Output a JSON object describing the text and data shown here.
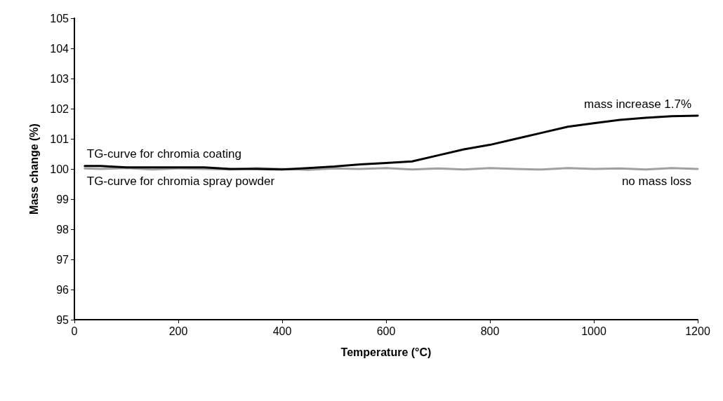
{
  "chart_data": {
    "type": "line",
    "xlabel": "Temperature (°C)",
    "ylabel": "Mass change (%)",
    "xlim": [
      0,
      1200
    ],
    "xticks": [
      0,
      200,
      400,
      600,
      800,
      1000,
      1200
    ],
    "ylim": [
      95,
      105
    ],
    "yticks": [
      95,
      96,
      97,
      98,
      99,
      100,
      101,
      102,
      103,
      104,
      105
    ],
    "grid": false,
    "marker": "none",
    "line_style": "solid",
    "series": [
      {
        "color": "#a0a0a0",
        "x": [
          20,
          50,
          100,
          150,
          200,
          250,
          300,
          350,
          400,
          450,
          500,
          550,
          600,
          650,
          700,
          750,
          800,
          850,
          900,
          950,
          1000,
          1050,
          1100,
          1150,
          1200
        ],
        "values": [
          100.02,
          100.0,
          100.03,
          99.98,
          100.02,
          100.0,
          99.98,
          100.03,
          100.0,
          99.97,
          100.02,
          100.0,
          100.03,
          99.98,
          100.02,
          99.98,
          100.03,
          100.0,
          99.98,
          100.03,
          100.0,
          100.02,
          99.98,
          100.03,
          100.0
        ]
      },
      {
        "color": "#000000",
        "x": [
          20,
          50,
          100,
          150,
          200,
          250,
          300,
          350,
          400,
          450,
          500,
          550,
          600,
          650,
          700,
          750,
          800,
          850,
          900,
          950,
          1000,
          1050,
          1100,
          1150,
          1200
        ],
        "values": [
          100.1,
          100.1,
          100.05,
          100.05,
          100.05,
          100.05,
          100.0,
          100.0,
          99.98,
          100.03,
          100.08,
          100.15,
          100.2,
          100.25,
          100.45,
          100.65,
          100.8,
          101.0,
          101.2,
          101.4,
          101.52,
          101.63,
          101.7,
          101.75,
          101.77
        ]
      }
    ],
    "annotations": [
      "TG-curve for chromia coating",
      "TG-curve for chromia spray powder",
      "mass increase 1.7%",
      "no mass loss"
    ]
  }
}
